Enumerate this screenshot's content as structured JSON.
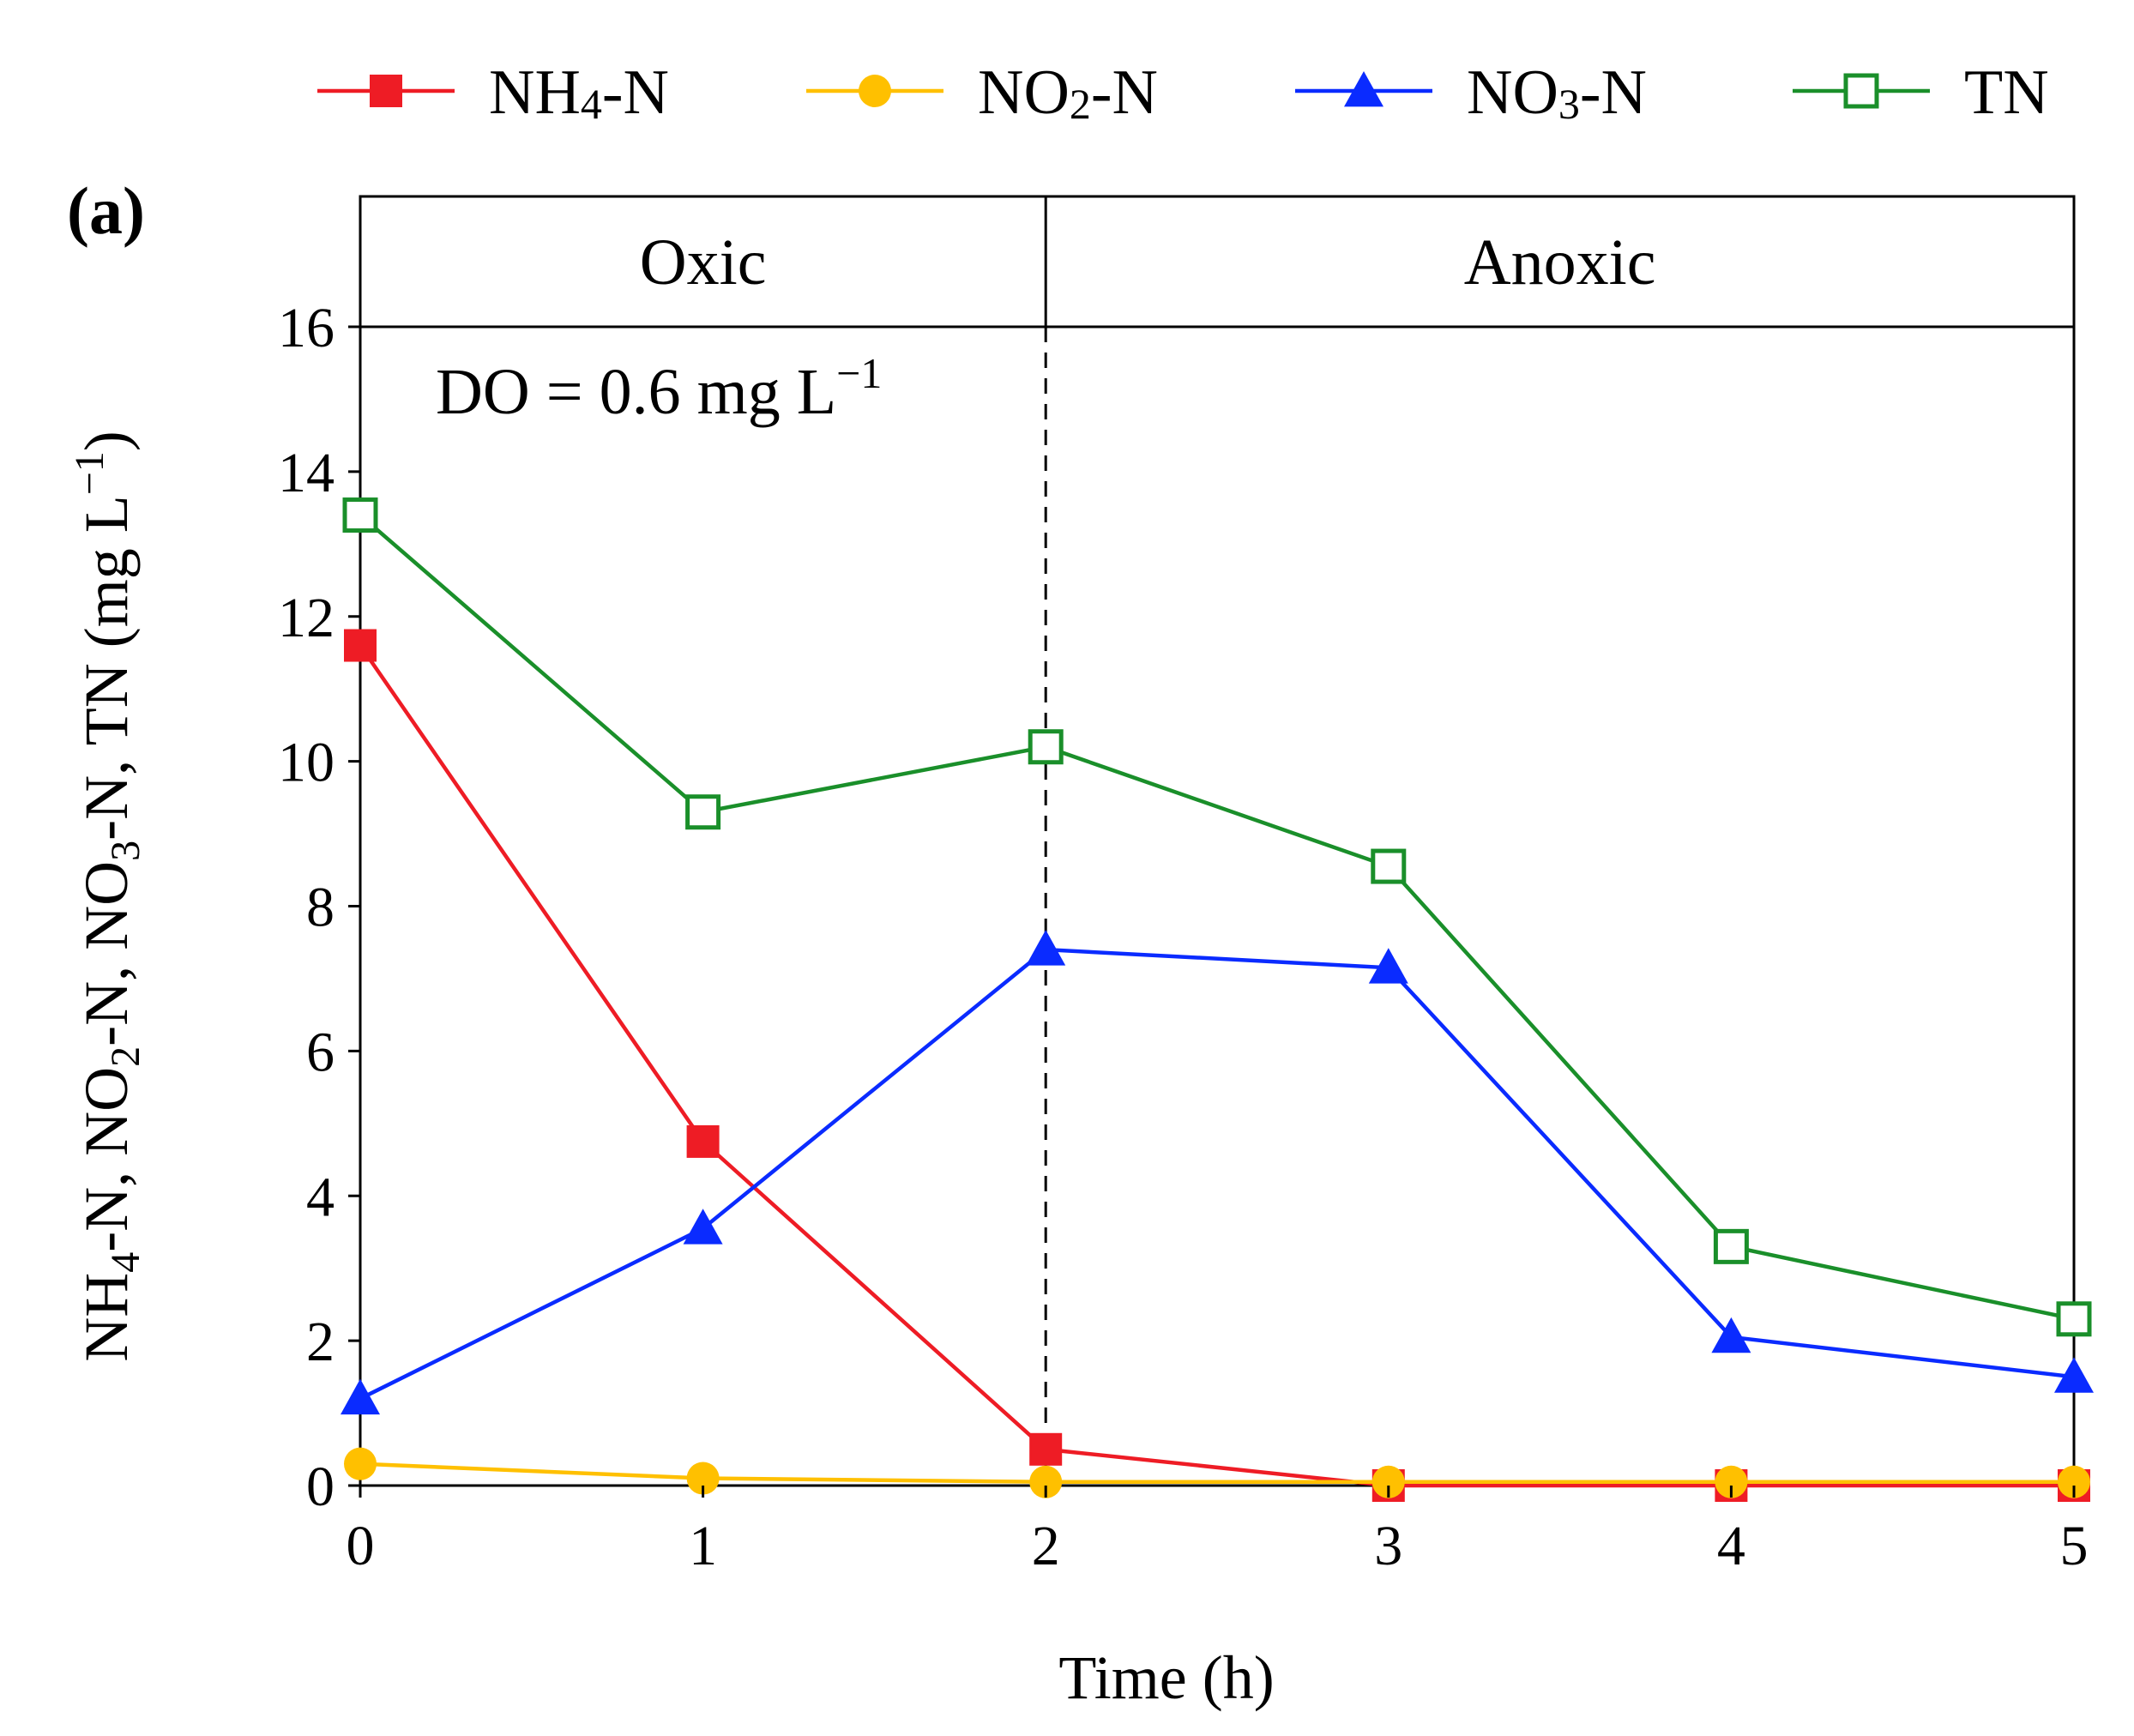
{
  "chart_data": {
    "type": "line",
    "panel_label": "(a)",
    "title": "",
    "xlabel": "Time (h)",
    "ylabel": "NH4-N, NO2-N, NO3-N, TN (mg L⁻¹)",
    "ylabel_parts": [
      "NH",
      "4",
      "-N, NO",
      "2",
      "-N, NO",
      "3",
      "-N, TN (mg L",
      "−1",
      ")"
    ],
    "xlim": [
      0,
      5
    ],
    "ylim": [
      0,
      16
    ],
    "y_box_top": 17.8,
    "x": [
      0,
      1,
      2,
      3,
      4,
      5
    ],
    "x_ticks": [
      "0",
      "1",
      "2",
      "3",
      "4",
      "5"
    ],
    "y_ticks": [
      "0",
      "2",
      "4",
      "6",
      "8",
      "10",
      "12",
      "14",
      "16"
    ],
    "phases": [
      {
        "label": "Oxic",
        "x_start": 0,
        "x_end": 2
      },
      {
        "label": "Anoxic",
        "x_start": 2,
        "x_end": 5
      }
    ],
    "phase_boundary_x": 2,
    "annotation": {
      "text": "DO = 0.6 mg L",
      "superscript": "−1"
    },
    "series": [
      {
        "name": "NH4-N",
        "legend_main": "NH",
        "legend_sub": "4",
        "legend_tail": "-N",
        "marker": "square-filled",
        "color": "#ee1c25",
        "values": [
          11.6,
          4.75,
          0.5,
          0.0,
          0.0,
          0.0
        ]
      },
      {
        "name": "NO2-N",
        "legend_main": "NO",
        "legend_sub": "2",
        "legend_tail": "-N",
        "marker": "circle-filled",
        "color": "#ffc000",
        "values": [
          0.3,
          0.1,
          0.05,
          0.05,
          0.05,
          0.05
        ]
      },
      {
        "name": "NO3-N",
        "legend_main": "NO",
        "legend_sub": "3",
        "legend_tail": "-N",
        "marker": "triangle-filled",
        "color": "#0a2bff",
        "values": [
          1.2,
          3.55,
          7.4,
          7.15,
          2.05,
          1.5
        ]
      },
      {
        "name": "TN",
        "legend_main": "TN",
        "legend_sub": "",
        "legend_tail": "",
        "marker": "square-open",
        "color": "#1a8f2a",
        "values": [
          13.4,
          9.3,
          10.2,
          8.55,
          3.3,
          2.3
        ]
      }
    ]
  }
}
